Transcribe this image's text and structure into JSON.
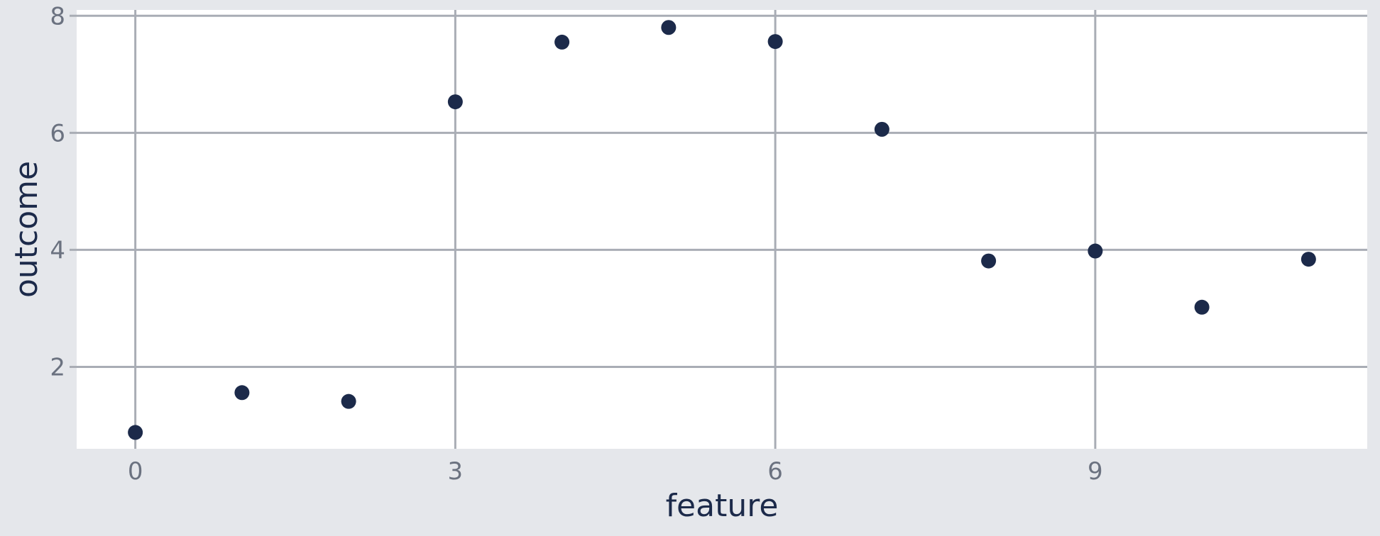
{
  "chart_data": {
    "type": "scatter",
    "title": "",
    "xlabel": "feature",
    "ylabel": "outcome",
    "xlim": [
      -0.55,
      11.55
    ],
    "ylim": [
      0.6,
      8.1
    ],
    "x_ticks": [
      0,
      3,
      6,
      9
    ],
    "y_ticks": [
      2,
      4,
      6,
      8
    ],
    "grid": true,
    "colors": {
      "page_background": "#e5e7eb",
      "plot_background": "#ffffff",
      "grid": "#a9adb5",
      "point": "#1c2a4a",
      "tick_text": "#6b7280",
      "axis_title": "#1c2a4a"
    },
    "series": [
      {
        "x": [
          0,
          1,
          2,
          3,
          4,
          5,
          6,
          7,
          8,
          9,
          10,
          11
        ],
        "y": [
          0.88,
          1.56,
          1.41,
          6.53,
          7.55,
          7.8,
          7.56,
          6.06,
          3.81,
          3.98,
          3.02,
          3.84
        ]
      }
    ]
  }
}
